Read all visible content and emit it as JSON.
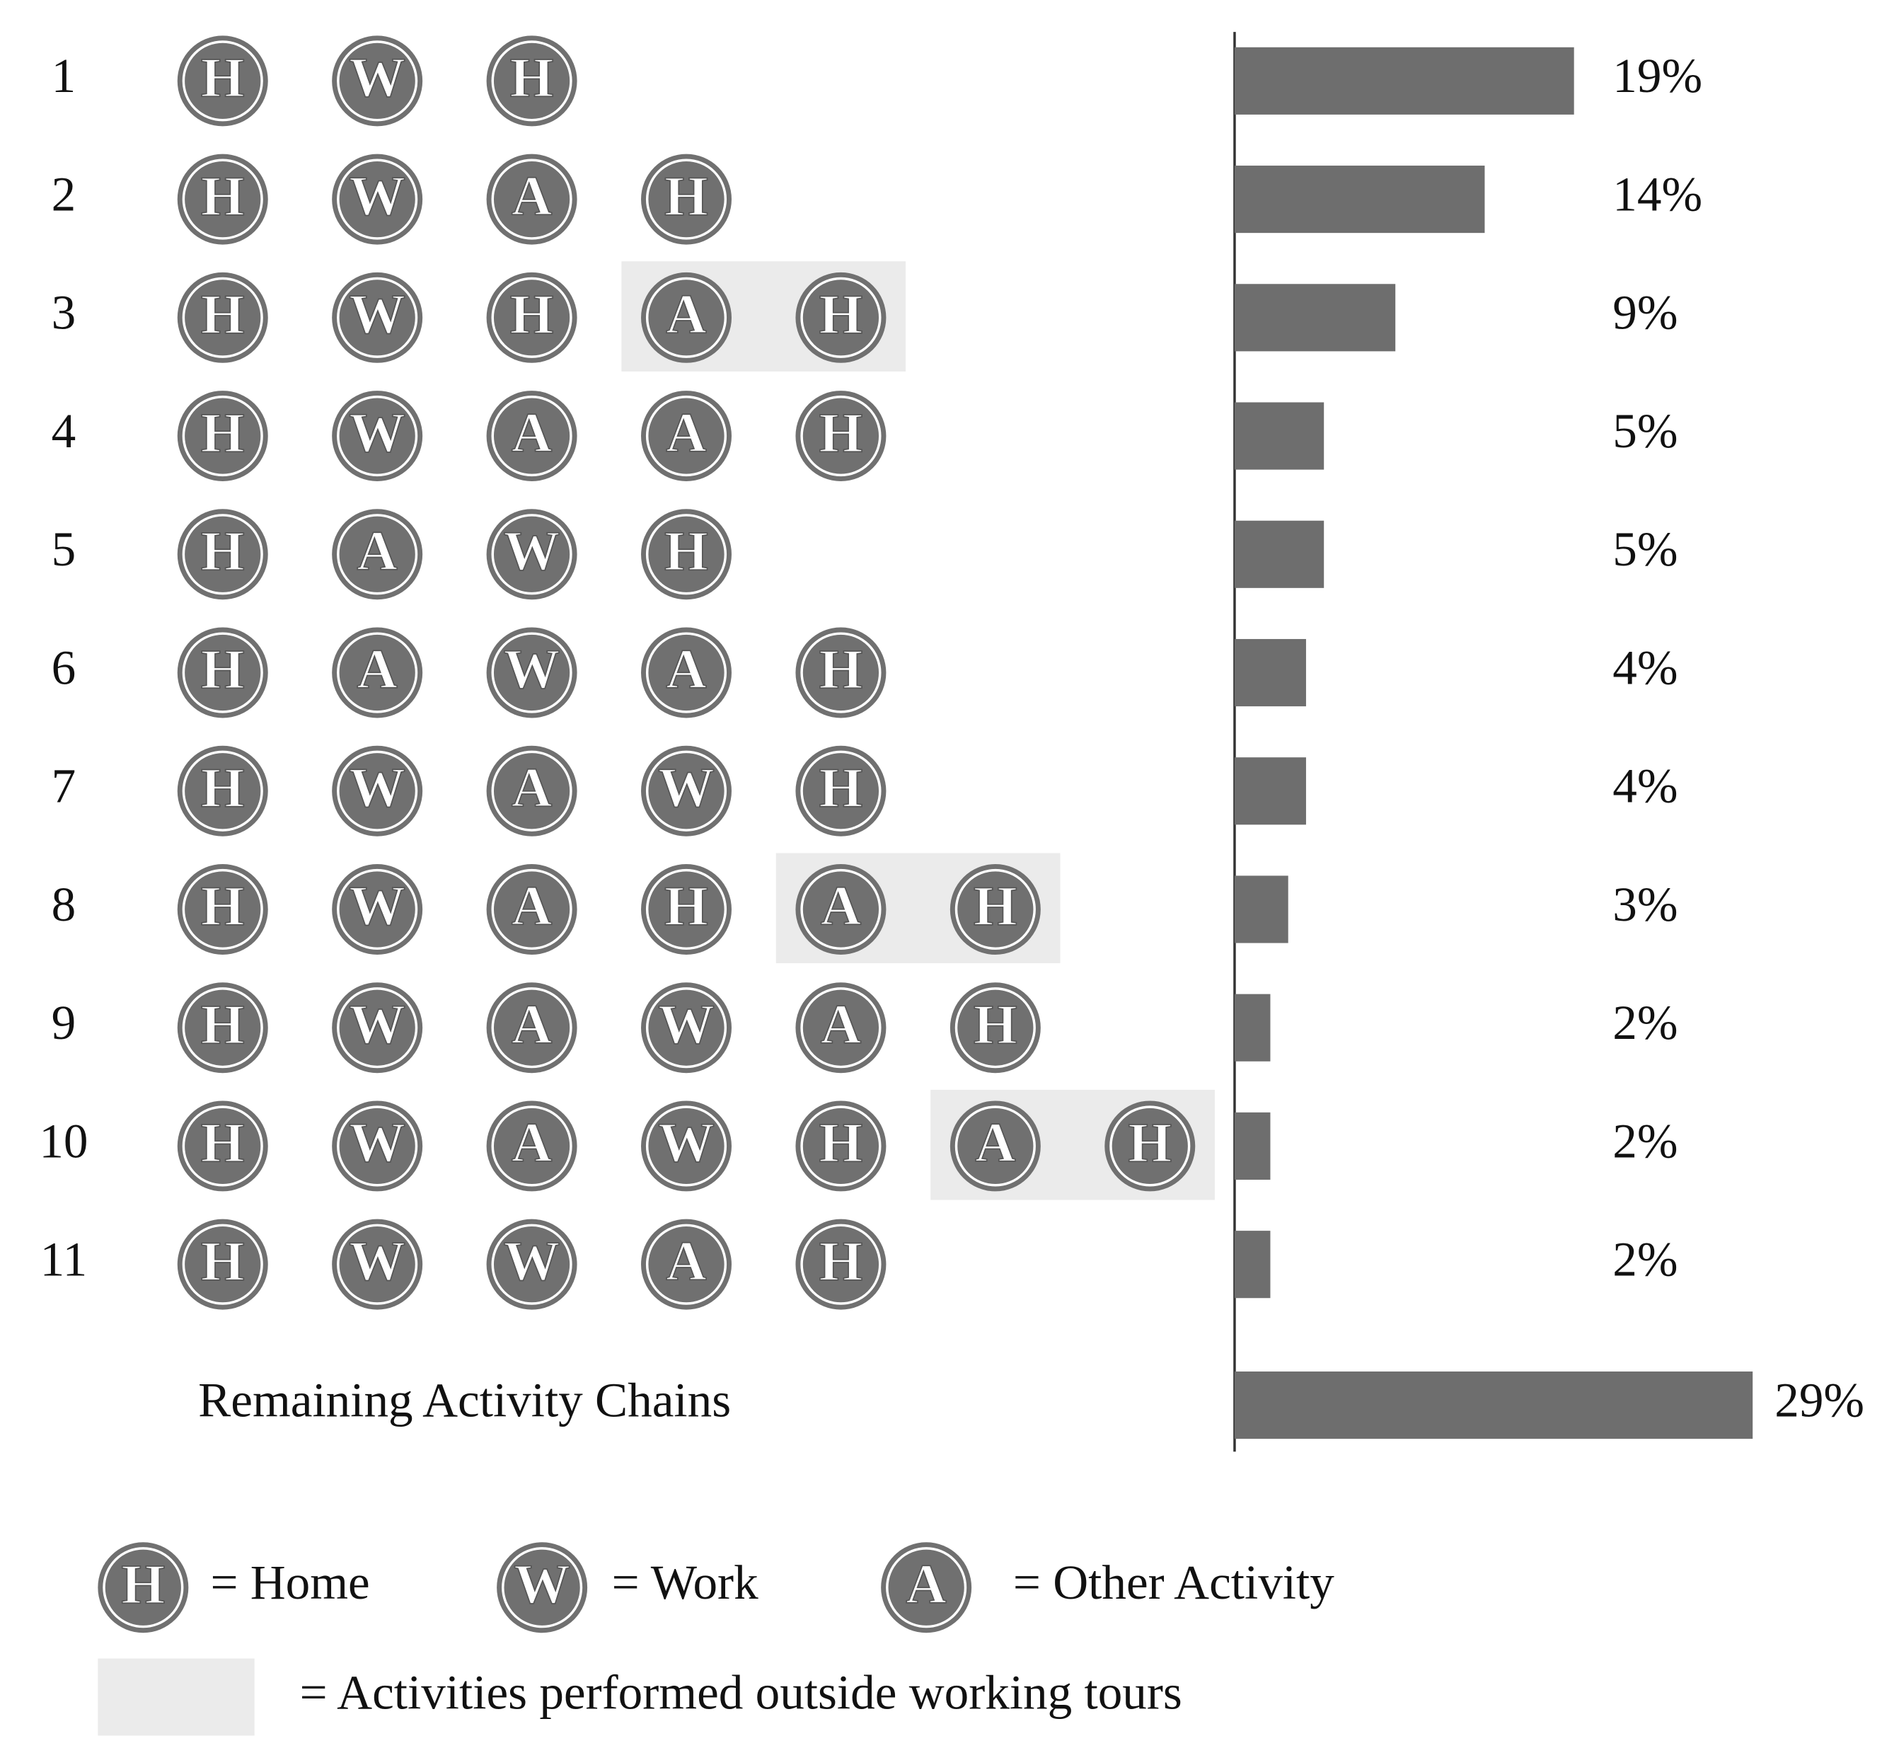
{
  "chart_data": {
    "type": "bar",
    "orientation": "horizontal",
    "color": "#6e6e6e",
    "categories": [
      "1",
      "2",
      "3",
      "4",
      "5",
      "6",
      "7",
      "8",
      "9",
      "10",
      "11",
      "Remaining Activity Chains"
    ],
    "values": [
      19,
      14,
      9,
      5,
      5,
      4,
      4,
      3,
      2,
      2,
      2,
      29
    ],
    "value_labels": [
      "19%",
      "14%",
      "9%",
      "5%",
      "5%",
      "4%",
      "4%",
      "3%",
      "2%",
      "2%",
      "2%",
      "29%"
    ],
    "chains": [
      [
        {
          "letter": "H"
        },
        {
          "letter": "W"
        },
        {
          "letter": "H"
        }
      ],
      [
        {
          "letter": "H"
        },
        {
          "letter": "W"
        },
        {
          "letter": "A"
        },
        {
          "letter": "H"
        }
      ],
      [
        {
          "letter": "H"
        },
        {
          "letter": "W"
        },
        {
          "letter": "H"
        },
        {
          "letter": "A",
          "outside": true
        },
        {
          "letter": "H",
          "outside": true
        }
      ],
      [
        {
          "letter": "H"
        },
        {
          "letter": "W"
        },
        {
          "letter": "A"
        },
        {
          "letter": "A"
        },
        {
          "letter": "H"
        }
      ],
      [
        {
          "letter": "H"
        },
        {
          "letter": "A"
        },
        {
          "letter": "W"
        },
        {
          "letter": "H"
        }
      ],
      [
        {
          "letter": "H"
        },
        {
          "letter": "A"
        },
        {
          "letter": "W"
        },
        {
          "letter": "A"
        },
        {
          "letter": "H"
        }
      ],
      [
        {
          "letter": "H"
        },
        {
          "letter": "W"
        },
        {
          "letter": "A"
        },
        {
          "letter": "W"
        },
        {
          "letter": "H"
        }
      ],
      [
        {
          "letter": "H"
        },
        {
          "letter": "W"
        },
        {
          "letter": "A"
        },
        {
          "letter": "H"
        },
        {
          "letter": "A",
          "outside": true
        },
        {
          "letter": "H",
          "outside": true
        }
      ],
      [
        {
          "letter": "H"
        },
        {
          "letter": "W"
        },
        {
          "letter": "A"
        },
        {
          "letter": "W"
        },
        {
          "letter": "A"
        },
        {
          "letter": "H"
        }
      ],
      [
        {
          "letter": "H"
        },
        {
          "letter": "W"
        },
        {
          "letter": "A"
        },
        {
          "letter": "W"
        },
        {
          "letter": "H"
        },
        {
          "letter": "A",
          "outside": true
        },
        {
          "letter": "H",
          "outside": true
        }
      ],
      [
        {
          "letter": "H"
        },
        {
          "letter": "W"
        },
        {
          "letter": "W"
        },
        {
          "letter": "A"
        },
        {
          "letter": "H"
        }
      ]
    ],
    "legend": [
      {
        "symbol": "H",
        "label": "= Home"
      },
      {
        "symbol": "W",
        "label": "= Work"
      },
      {
        "symbol": "A",
        "label": "= Other Activity"
      }
    ],
    "outside_label": "= Activities performed outside working tours"
  }
}
